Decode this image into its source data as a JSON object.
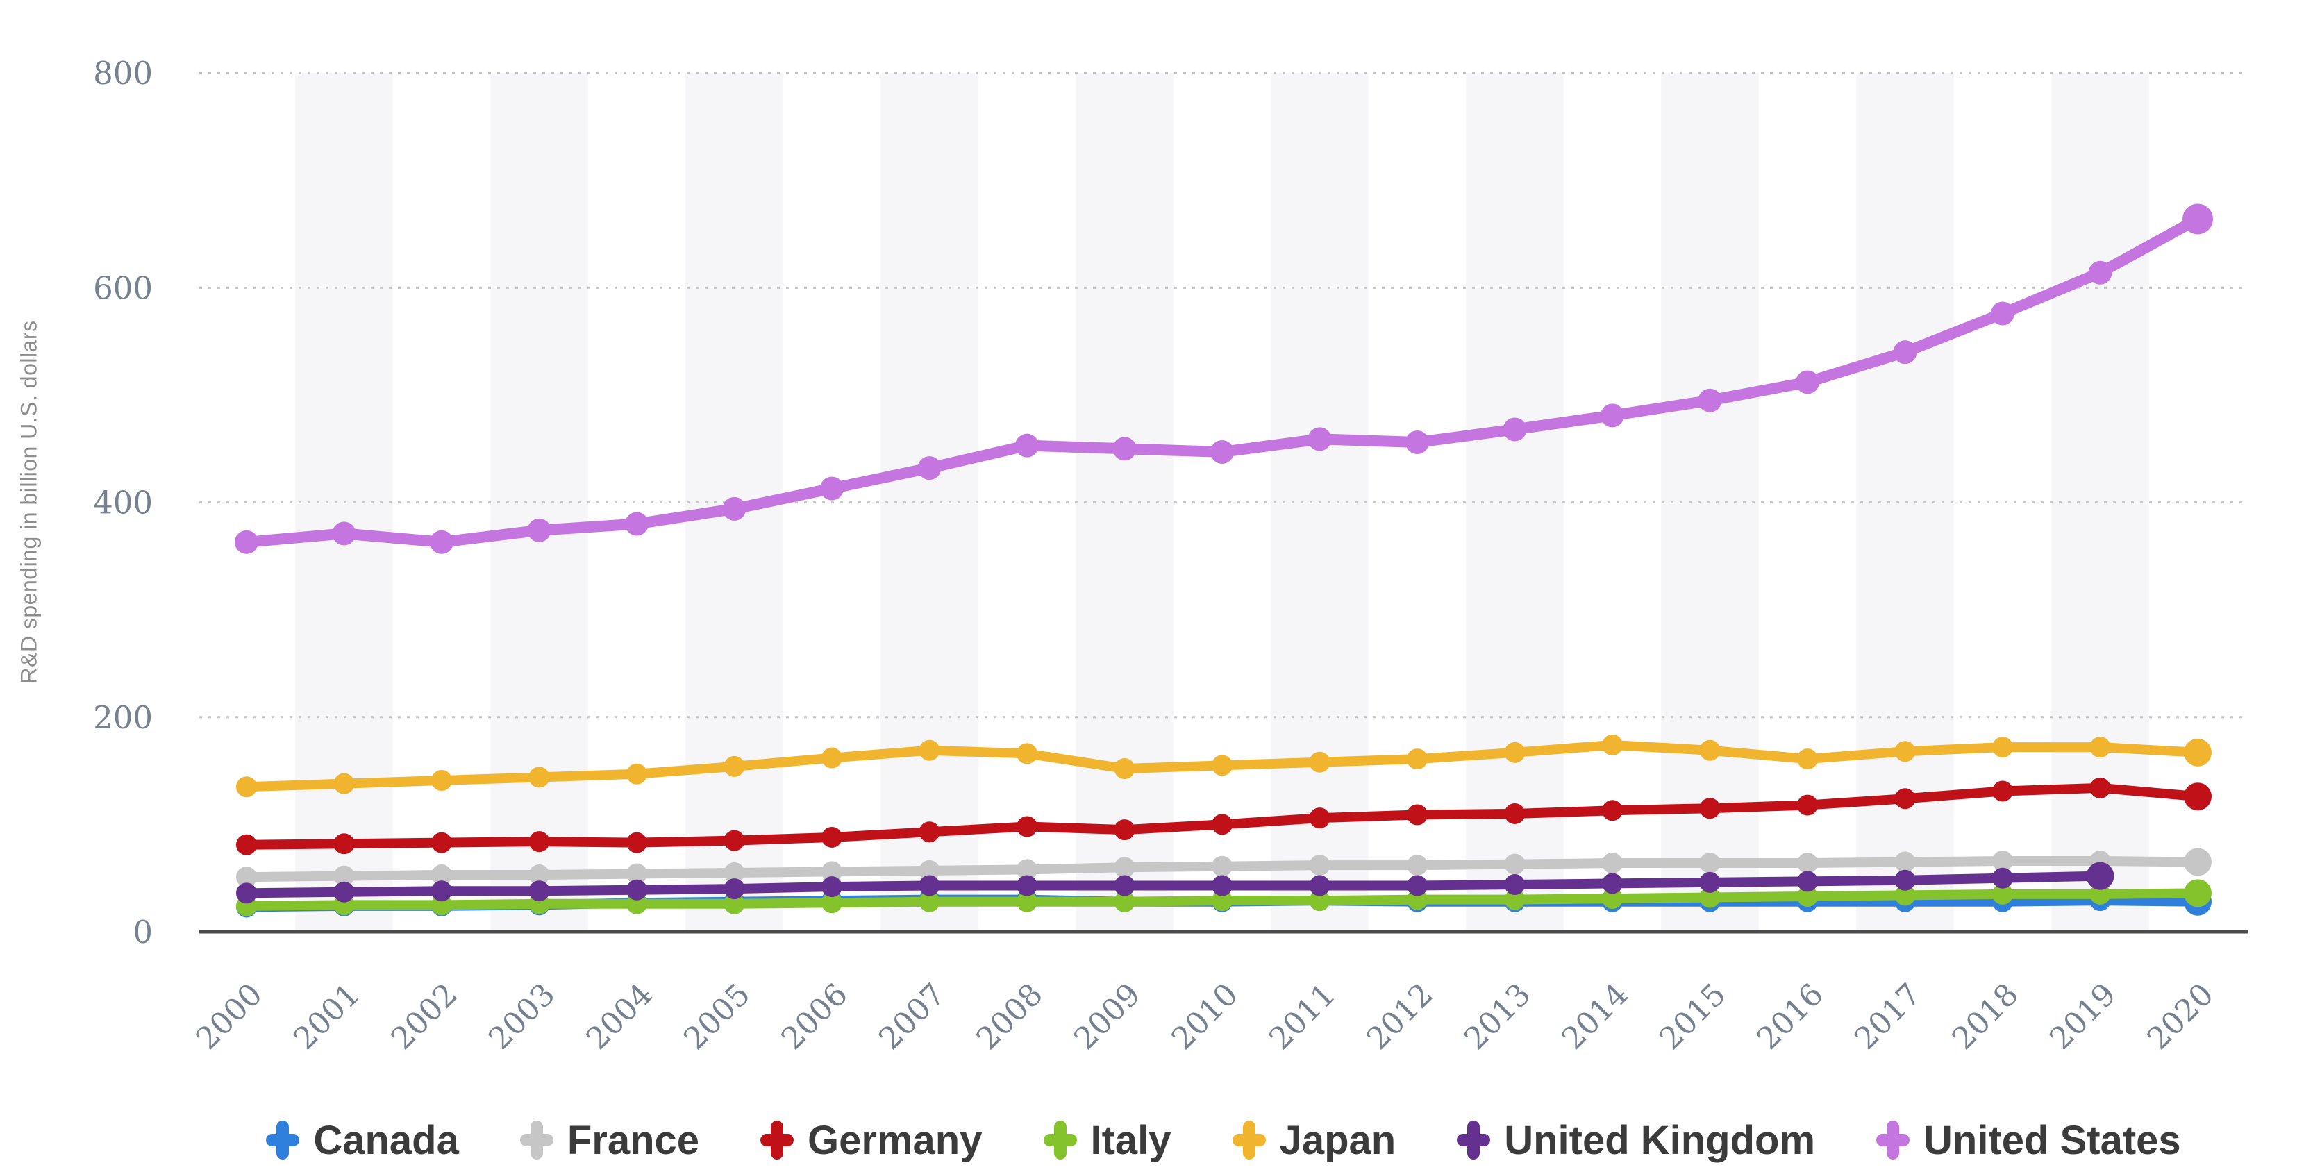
{
  "page": {
    "background": "#ffffff"
  },
  "y_axis": {
    "title": "R&D spending in billion U.S. dollars",
    "tick_labels": [
      "800",
      "600",
      "400",
      "200",
      "0"
    ],
    "tick_values": [
      800,
      600,
      400,
      200,
      0
    ]
  },
  "x_axis": {
    "tick_labels": [
      "2000",
      "2001",
      "2002",
      "2003",
      "2004",
      "2005",
      "2006",
      "2007",
      "2008",
      "2009",
      "2010",
      "2011",
      "2012",
      "2013",
      "2014",
      "2015",
      "2016",
      "2017",
      "2018",
      "2019",
      "2020"
    ]
  },
  "style": {
    "grid_color": "#c4c4c4",
    "axis_color": "#4b4b4b",
    "band_color": "#f6f6f8",
    "tick_label_color": "#76818f",
    "y_title_color": "#8d8d8d",
    "legend_text_color": "#3b3b3b"
  },
  "chart_data": {
    "type": "line",
    "title": "",
    "xlabel": "",
    "ylabel": "R&D spending in billion U.S. dollars",
    "ylim": [
      0,
      800
    ],
    "yticks": [
      0,
      200,
      400,
      600,
      800
    ],
    "grid": "horizontal dotted gridlines",
    "plot_bands": "alternating light vertical bands on odd years",
    "legend_position": "bottom",
    "categories": [
      "2000",
      "2001",
      "2002",
      "2003",
      "2004",
      "2005",
      "2006",
      "2007",
      "2008",
      "2009",
      "2010",
      "2011",
      "2012",
      "2013",
      "2014",
      "2015",
      "2016",
      "2017",
      "2018",
      "2019",
      "2020"
    ],
    "series": [
      {
        "name": "Canada",
        "color": "#2f80dd",
        "values": [
          23,
          24,
          24,
          25,
          27,
          28,
          29,
          30,
          30,
          28,
          28,
          29,
          28,
          28,
          28,
          28,
          28,
          28,
          28,
          29,
          28
        ]
      },
      {
        "name": "France",
        "color": "#c6c6c6",
        "values": [
          51,
          52,
          53,
          53,
          54,
          55,
          56,
          57,
          58,
          60,
          61,
          62,
          62,
          63,
          64,
          64,
          64,
          65,
          66,
          66,
          65
        ]
      },
      {
        "name": "Germany",
        "color": "#c01119",
        "values": [
          81,
          82,
          83,
          84,
          83,
          85,
          88,
          93,
          98,
          95,
          100,
          106,
          109,
          110,
          113,
          115,
          118,
          124,
          131,
          134,
          126
        ]
      },
      {
        "name": "Italy",
        "color": "#84c32b",
        "values": [
          24,
          25,
          25,
          26,
          26,
          26,
          27,
          28,
          28,
          28,
          29,
          29,
          30,
          30,
          31,
          32,
          33,
          34,
          35,
          35,
          36
        ]
      },
      {
        "name": "Japan",
        "color": "#f1b42e",
        "values": [
          135,
          138,
          141,
          144,
          147,
          154,
          162,
          169,
          166,
          152,
          155,
          158,
          161,
          167,
          174,
          169,
          161,
          168,
          172,
          172,
          167
        ]
      },
      {
        "name": "United Kingdom",
        "color": "#643190",
        "values": [
          36,
          37,
          38,
          38,
          39,
          40,
          42,
          43,
          43,
          43,
          43,
          43,
          43,
          44,
          45,
          46,
          47,
          48,
          50,
          52,
          null
        ]
      },
      {
        "name": "United States",
        "color": "#c475e0",
        "values": [
          363,
          371,
          363,
          374,
          380,
          394,
          413,
          432,
          453,
          450,
          447,
          459,
          456,
          468,
          481,
          495,
          512,
          540,
          576,
          614,
          664
        ]
      }
    ]
  }
}
